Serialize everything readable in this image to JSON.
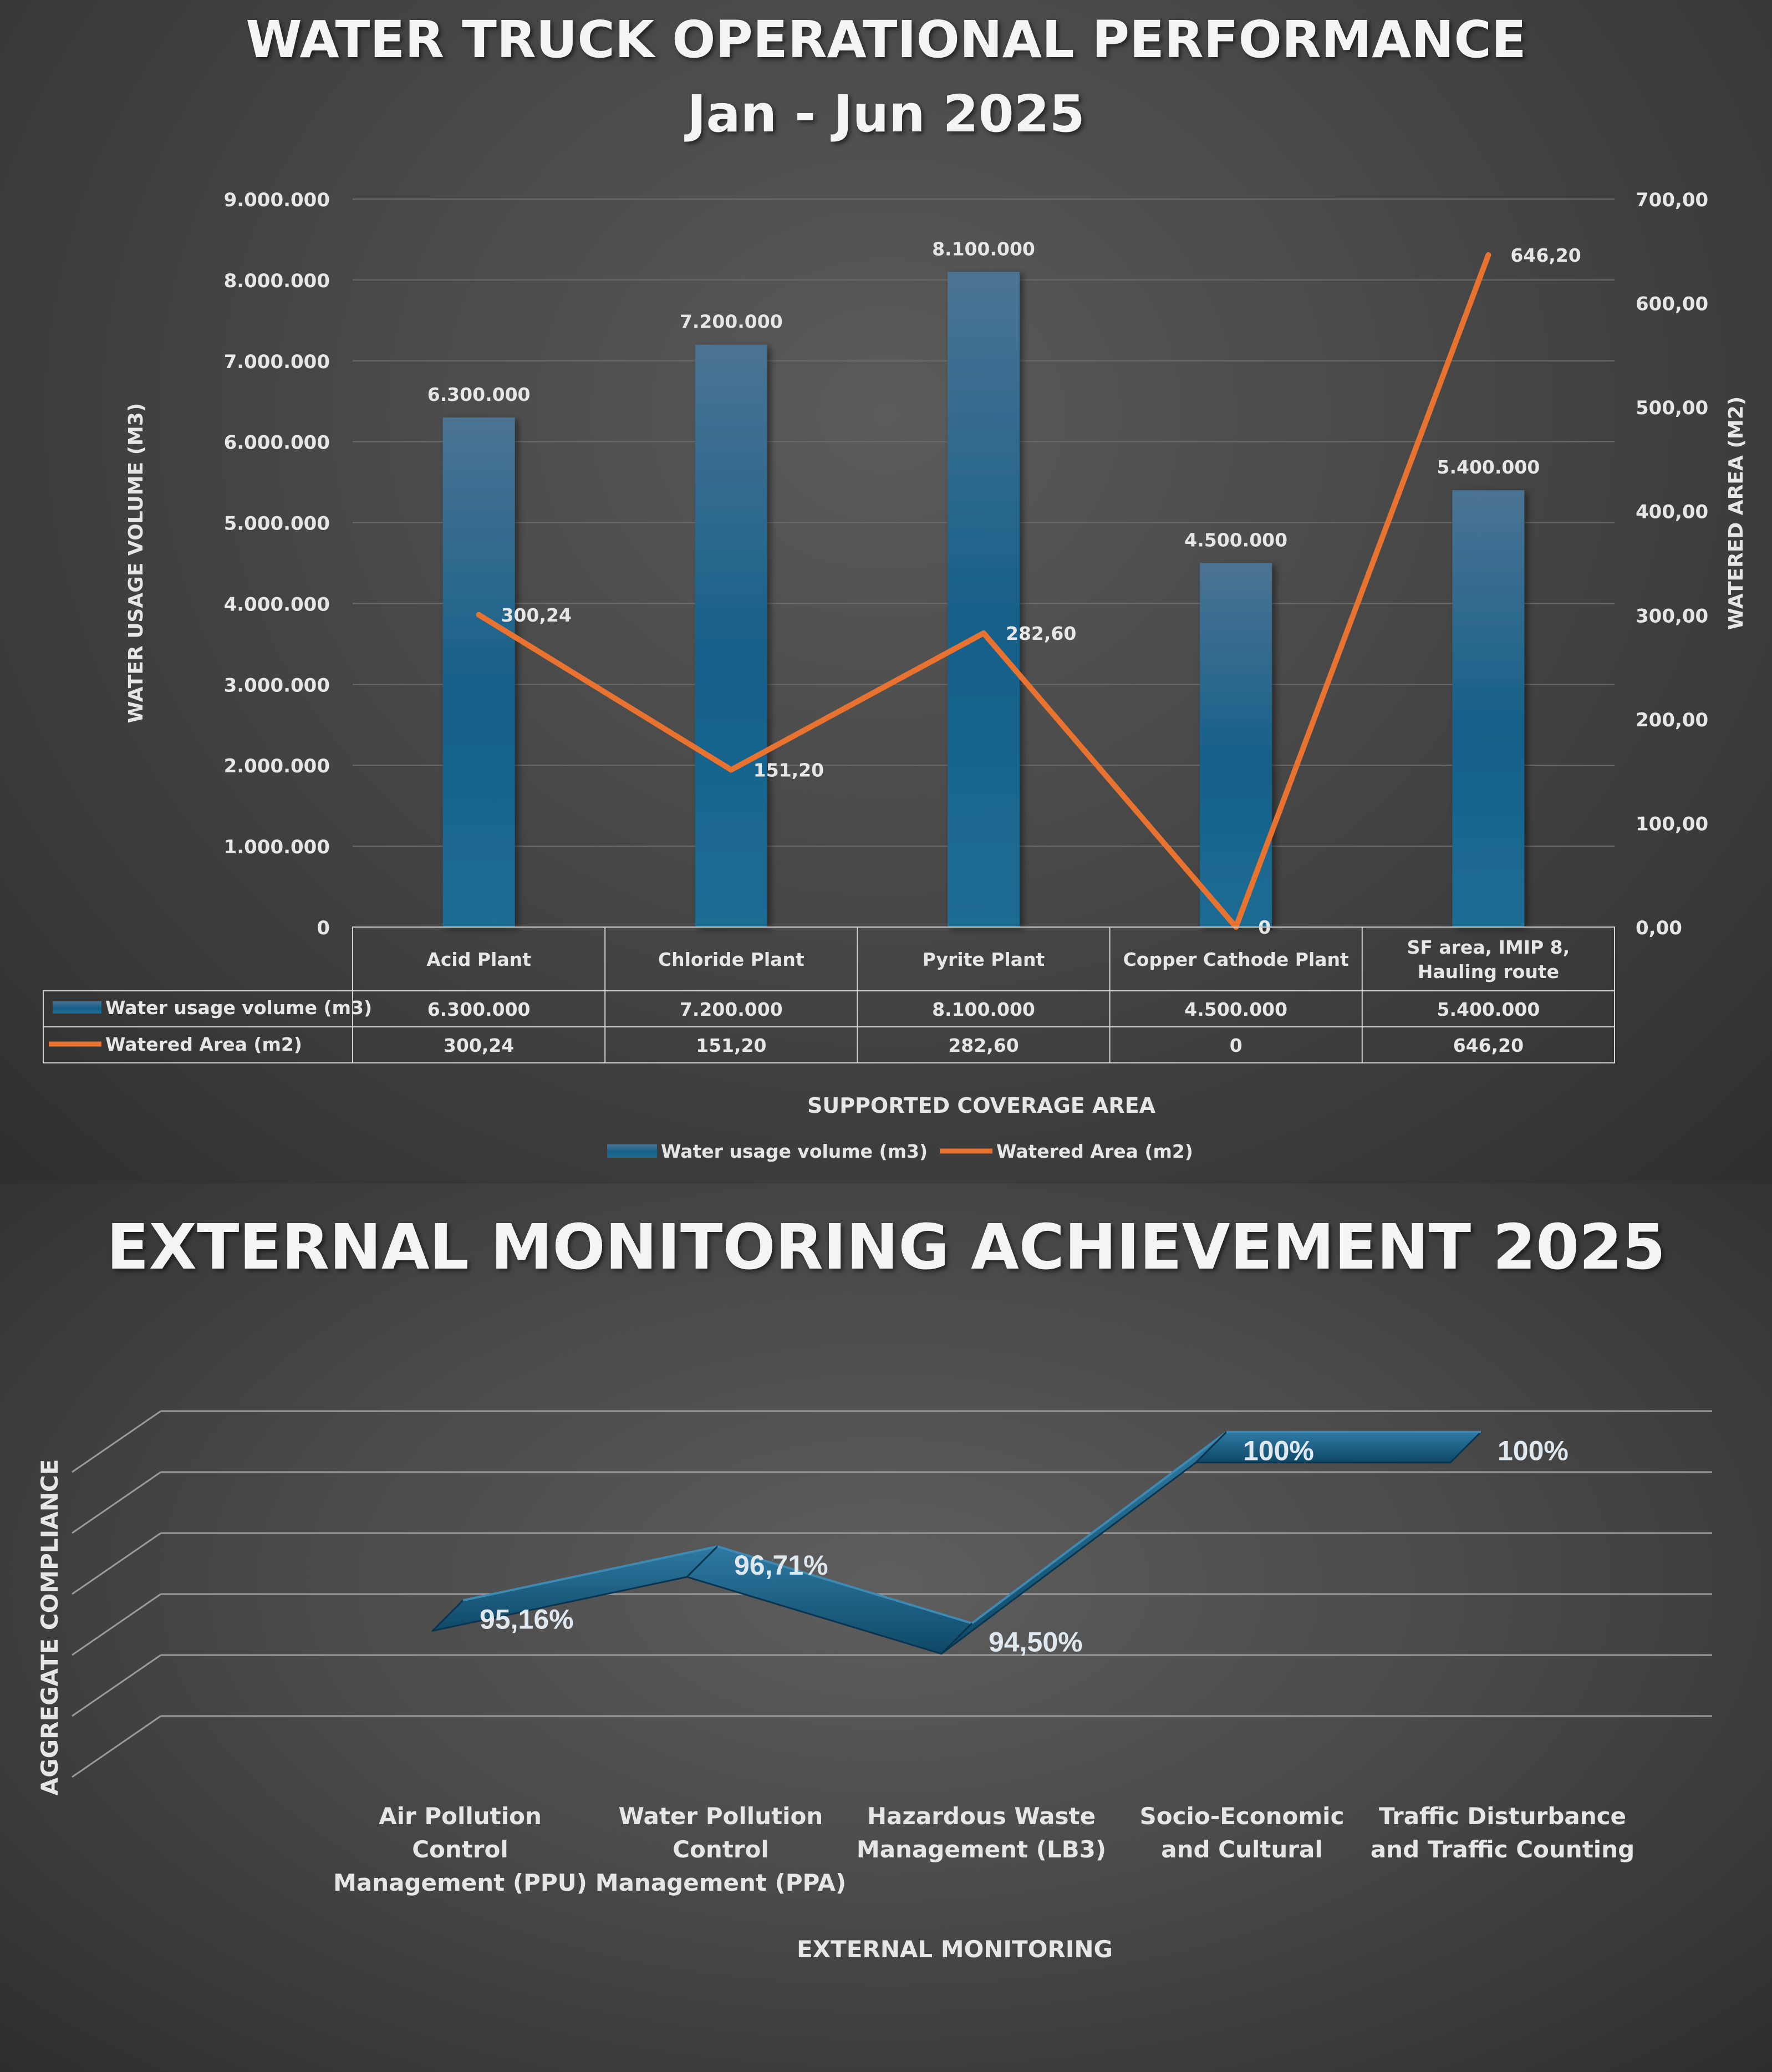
{
  "chart_data": [
    {
      "type": "bar",
      "title": "WATER TRUCK OPERATIONAL PERFORMANCE",
      "subtitle": "Jan - Jun 2025",
      "xlabel": "SUPPORTED COVERAGE AREA",
      "ylabel": "WATER USAGE VOLUME (M3)",
      "y2label": "WATERED AREA (M2)",
      "categories": [
        "Acid Plant",
        "Chloride Plant",
        "Pyrite Plant",
        "Copper Cathode Plant",
        "SF area, IMIP 8, Hauling route"
      ],
      "ylim": [
        0,
        9000000
      ],
      "y2lim": [
        0,
        700
      ],
      "yticks": [
        "0",
        "1.000.000",
        "2.000.000",
        "3.000.000",
        "4.000.000",
        "5.000.000",
        "6.000.000",
        "7.000.000",
        "8.000.000",
        "9.000.000"
      ],
      "y2ticks": [
        "0,00",
        "100,00",
        "200,00",
        "300,00",
        "400,00",
        "500,00",
        "600,00",
        "700,00"
      ],
      "series": [
        {
          "name": "Water usage volume (m3)",
          "type": "bar",
          "axis": "left",
          "color": "#1d6c94",
          "values": [
            6300000,
            7200000,
            8100000,
            4500000,
            5400000
          ],
          "labels": [
            "6.300.000",
            "7.200.000",
            "8.100.000",
            "4.500.000",
            "5.400.000"
          ]
        },
        {
          "name": "Watered Area (m2)",
          "type": "line",
          "axis": "right",
          "color": "#e8722f",
          "values": [
            300.24,
            151.2,
            282.6,
            0,
            646.2
          ],
          "labels": [
            "300,24",
            "151,20",
            "282,60",
            "0",
            "646,20"
          ]
        }
      ],
      "grid": true,
      "legend": "bottom",
      "data_table": true
    },
    {
      "type": "line",
      "style": "3d-ribbon",
      "title": "EXTERNAL MONITORING ACHIEVEMENT 2025",
      "xlabel": "EXTERNAL MONITORING",
      "ylabel": "AGGREGATE COMPLIANCE",
      "categories": [
        "Air Pollution Control Management (PPU)",
        "Water Pollution Control Management (PPA)",
        "Hazardous Waste Management (LB3)",
        "Socio-Economic and Cultural",
        "Traffic Disturbance and Traffic Counting"
      ],
      "category_lines": [
        [
          "Air Pollution",
          "Control",
          "Management (PPU)"
        ],
        [
          "Water Pollution",
          "Control",
          "Management (PPA)"
        ],
        [
          "Hazardous Waste",
          "Management (LB3)"
        ],
        [
          "Socio-Economic",
          "and Cultural"
        ],
        [
          "Traffic Disturbance",
          "and Traffic Counting"
        ]
      ],
      "ylim": [
        90,
        101
      ],
      "series": [
        {
          "values": [
            95.16,
            96.71,
            94.5,
            100,
            100
          ],
          "labels": [
            "95,16%",
            "96,71%",
            "94,50%",
            "100%",
            "100%"
          ],
          "color": "#1a5d80"
        }
      ],
      "grid": true
    }
  ]
}
